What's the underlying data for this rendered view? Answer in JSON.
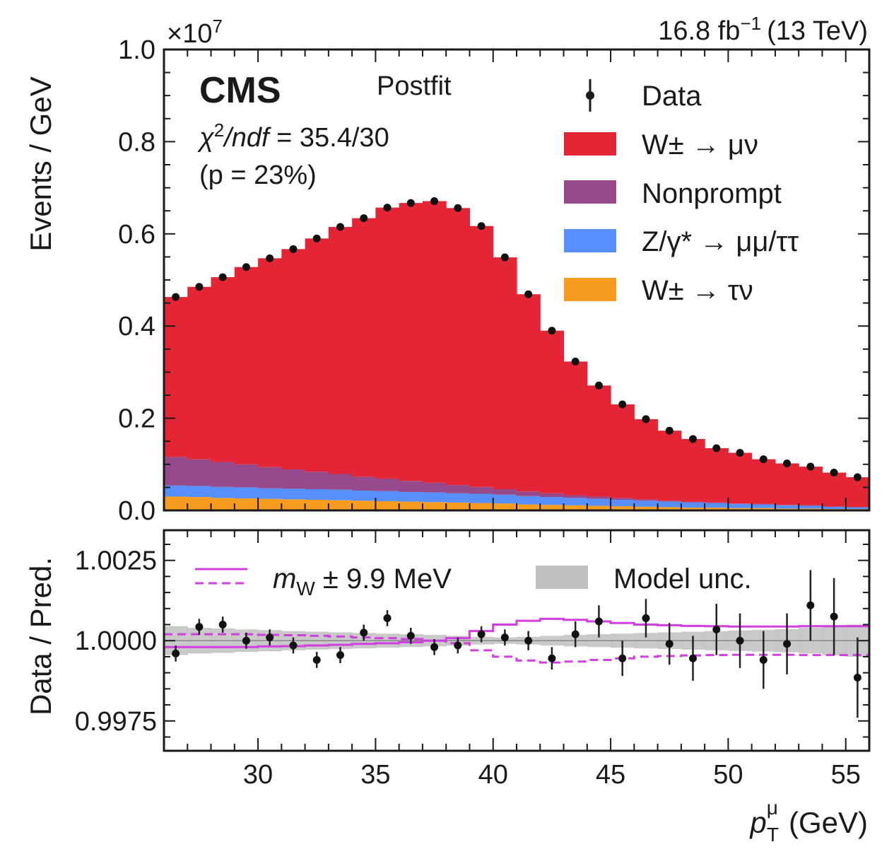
{
  "chart_data": {
    "type": "histogram",
    "experiment": "CMS",
    "fit_label": "Postfit",
    "lumi_label": "16.8 fb",
    "lumi_sup": "−1",
    "energy_label": "(13 TeV)",
    "gof": {
      "chi": "χ",
      "sup": "2",
      "ndf": "/ndf",
      "value": " = 35.4/30",
      "pval": "(p = 23%)"
    },
    "top_panel": {
      "ylabel": "Events / GeV",
      "y_multiplier": "×10",
      "y_multiplier_exp": "7",
      "ylim": [
        0.0,
        1.0
      ],
      "yticks": [
        "0.0",
        "0.2",
        "0.4",
        "0.6",
        "0.8",
        "1.0"
      ],
      "xlim": [
        26,
        56
      ],
      "bin_edges": [
        26,
        27,
        28,
        29,
        30,
        31,
        32,
        33,
        34,
        35,
        36,
        37,
        38,
        39,
        40,
        41,
        42,
        43,
        44,
        45,
        46,
        47,
        48,
        49,
        50,
        51,
        52,
        53,
        54,
        55,
        56
      ],
      "bin_centers": [
        26.5,
        27.5,
        28.5,
        29.5,
        30.5,
        31.5,
        32.5,
        33.5,
        34.5,
        35.5,
        36.5,
        37.5,
        38.5,
        39.5,
        40.5,
        41.5,
        42.5,
        43.5,
        44.5,
        45.5,
        46.5,
        47.5,
        48.5,
        49.5,
        50.5,
        51.5,
        52.5,
        53.5,
        54.5,
        55.5
      ],
      "series": [
        {
          "name": "W± → τν",
          "color": "#f89c20",
          "values": [
            0.03,
            0.029,
            0.027,
            0.026,
            0.025,
            0.024,
            0.023,
            0.022,
            0.021,
            0.02,
            0.019,
            0.018,
            0.017,
            0.016,
            0.015,
            0.013,
            0.012,
            0.011,
            0.01,
            0.009,
            0.008,
            0.007,
            0.006,
            0.006,
            0.005,
            0.005,
            0.004,
            0.004,
            0.003,
            0.003
          ]
        },
        {
          "name": "Z/γ* → μμ/ττ",
          "color": "#5790fc",
          "values": [
            0.024,
            0.024,
            0.024,
            0.024,
            0.023,
            0.023,
            0.023,
            0.023,
            0.022,
            0.022,
            0.021,
            0.021,
            0.02,
            0.02,
            0.019,
            0.018,
            0.017,
            0.016,
            0.015,
            0.014,
            0.013,
            0.012,
            0.011,
            0.01,
            0.009,
            0.008,
            0.007,
            0.006,
            0.005,
            0.004
          ]
        },
        {
          "name": "Nonprompt",
          "color": "#964a8b",
          "values": [
            0.062,
            0.058,
            0.054,
            0.05,
            0.046,
            0.042,
            0.038,
            0.034,
            0.03,
            0.027,
            0.024,
            0.021,
            0.018,
            0.015,
            0.012,
            0.01,
            0.008,
            0.006,
            0.005,
            0.004,
            0.003,
            0.002,
            0.002,
            0.001,
            0.001,
            0.001,
            0.001,
            0.001,
            0.0,
            0.0
          ]
        },
        {
          "name": "W± → μν",
          "color": "#e42536",
          "values": [
            0.347,
            0.374,
            0.401,
            0.428,
            0.453,
            0.478,
            0.506,
            0.536,
            0.561,
            0.588,
            0.603,
            0.611,
            0.601,
            0.566,
            0.503,
            0.428,
            0.353,
            0.29,
            0.241,
            0.203,
            0.174,
            0.152,
            0.136,
            0.118,
            0.11,
            0.097,
            0.09,
            0.084,
            0.074,
            0.065
          ]
        }
      ],
      "data": {
        "name": "Data",
        "values": [
          0.463,
          0.485,
          0.506,
          0.528,
          0.547,
          0.567,
          0.59,
          0.615,
          0.634,
          0.657,
          0.667,
          0.671,
          0.656,
          0.617,
          0.549,
          0.469,
          0.39,
          0.323,
          0.271,
          0.23,
          0.198,
          0.173,
          0.155,
          0.135,
          0.125,
          0.111,
          0.102,
          0.095,
          0.082,
          0.072
        ]
      }
    },
    "ratio_panel": {
      "ylabel": "Data / Pred.",
      "ylim": [
        0.99657,
        1.00344
      ],
      "yticks": [
        "0.9975",
        "1.0000",
        "1.0025"
      ],
      "xticks": [
        "30",
        "35",
        "40",
        "45",
        "50",
        "55"
      ],
      "xlabel_main": "p",
      "xlabel_sub": "T",
      "xlabel_sup": "μ",
      "xlabel_unit": "(GeV)",
      "data_values": [
        0.9996,
        1.00043,
        1.0005,
        1.0,
        1.0001,
        0.99985,
        0.9994,
        0.99955,
        1.00025,
        1.0007,
        1.00015,
        0.9998,
        0.99985,
        1.0002,
        1.0001,
        1.0,
        0.99945,
        1.0002,
        1.0006,
        0.99945,
        1.0007,
        0.9999,
        0.99945,
        1.00035,
        1.0,
        0.9994,
        0.9999,
        1.0011,
        1.00075,
        0.99885
      ],
      "data_errors": [
        0.00025,
        0.00025,
        0.00025,
        0.00025,
        0.00025,
        0.00025,
        0.00025,
        0.00025,
        0.00025,
        0.00025,
        0.00025,
        0.00025,
        0.00025,
        0.00025,
        0.00025,
        0.0003,
        0.00035,
        0.0004,
        0.0005,
        0.00055,
        0.0006,
        0.00065,
        0.0007,
        0.0008,
        0.00085,
        0.0009,
        0.00095,
        0.0011,
        0.0012,
        0.00125
      ],
      "model_unc_halfwidth": [
        0.00045,
        0.0004,
        0.00038,
        0.00035,
        0.00033,
        0.0003,
        0.00028,
        0.00026,
        0.00024,
        0.00022,
        0.0002,
        0.00018,
        0.00015,
        0.00012,
        0.0001,
        0.00012,
        0.00015,
        0.00018,
        0.0002,
        0.00022,
        0.00024,
        0.00026,
        0.00028,
        0.0003,
        0.00032,
        0.00034,
        0.00036,
        0.0004,
        0.00045,
        0.0005
      ],
      "mw_up": [
        0.9998,
        0.9998,
        0.9998,
        0.9998,
        0.99982,
        0.99983,
        0.99985,
        0.99987,
        0.9999,
        0.99992,
        0.99995,
        1.0,
        1.00008,
        1.0003,
        1.0005,
        1.00062,
        1.00068,
        1.00065,
        1.0006,
        1.00055,
        1.0005,
        1.00048,
        1.00046,
        1.00045,
        1.00044,
        1.00044,
        1.00044,
        1.00045,
        1.00045,
        1.00045
      ],
      "mw_down": [
        1.0002,
        1.0002,
        1.0002,
        1.0002,
        1.00018,
        1.00017,
        1.00015,
        1.00013,
        1.0001,
        1.00008,
        1.00005,
        1.0,
        0.99992,
        0.9997,
        0.9995,
        0.99938,
        0.99932,
        0.99935,
        0.9994,
        0.99945,
        0.9995,
        0.99952,
        0.99954,
        0.99955,
        0.99956,
        0.99956,
        0.99956,
        0.99955,
        0.99955,
        0.99955
      ],
      "legend": [
        {
          "name_main": "m",
          "name_sub": "W",
          "name_rest": " ± 9.9 MeV",
          "color": "#d23fe0"
        },
        {
          "name": "Model unc.",
          "color": "#c0c0c0"
        }
      ]
    },
    "legend_placement": "top-right",
    "grid": false
  }
}
